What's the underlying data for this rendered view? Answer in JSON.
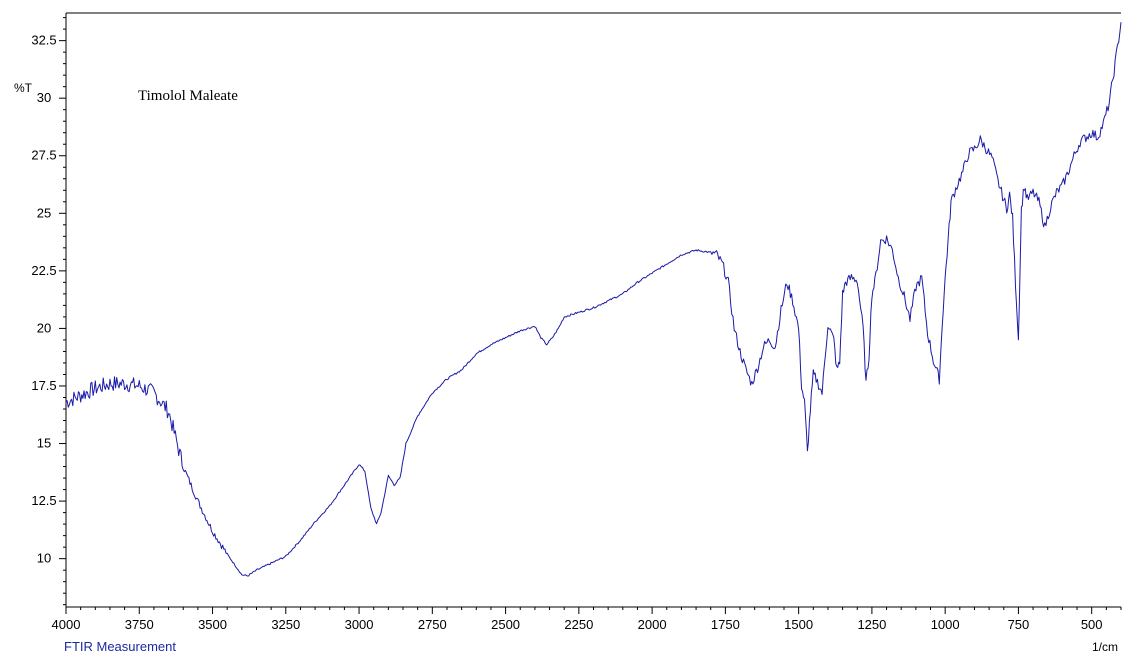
{
  "footer": "FTIR Measurement",
  "chart_data": {
    "type": "line",
    "title": "",
    "annotation": "Timolol Maleate",
    "xlabel": "1/cm",
    "ylabel": "%T",
    "xlim": [
      4000,
      400
    ],
    "ylim": [
      7.9,
      33.7
    ],
    "x_ticks": [
      "4000",
      "3750",
      "3500",
      "3250",
      "3000",
      "2750",
      "2500",
      "2250",
      "2000",
      "1750",
      "1500",
      "1250",
      "1000",
      "750",
      "500"
    ],
    "y_ticks": [
      "10",
      "12.5",
      "15",
      "17.5",
      "20",
      "22.5",
      "25",
      "27.5",
      "30",
      "32.5"
    ],
    "grid": false,
    "colors": {
      "line": "#1a1aa8",
      "axis": "#000000",
      "footer": "#1a2aa0"
    },
    "series": [
      {
        "x": [
          4000,
          3950,
          3900,
          3850,
          3800,
          3750,
          3700,
          3650,
          3600,
          3550,
          3500,
          3450,
          3400,
          3380,
          3350,
          3300,
          3250,
          3200,
          3150,
          3100,
          3050,
          3000,
          2980,
          2960,
          2940,
          2925,
          2900,
          2880,
          2860,
          2840,
          2800,
          2750,
          2700,
          2650,
          2600,
          2550,
          2500,
          2450,
          2400,
          2380,
          2360,
          2340,
          2320,
          2300,
          2250,
          2200,
          2150,
          2100,
          2050,
          2000,
          1950,
          1900,
          1850,
          1800,
          1780,
          1760,
          1740,
          1720,
          1700,
          1680,
          1660,
          1640,
          1620,
          1600,
          1580,
          1560,
          1540,
          1520,
          1500,
          1490,
          1480,
          1470,
          1460,
          1450,
          1440,
          1420,
          1400,
          1380,
          1370,
          1360,
          1350,
          1340,
          1320,
          1300,
          1280,
          1270,
          1260,
          1250,
          1240,
          1220,
          1200,
          1180,
          1160,
          1140,
          1120,
          1100,
          1080,
          1060,
          1040,
          1020,
          1010,
          1000,
          990,
          980,
          960,
          940,
          920,
          900,
          880,
          860,
          840,
          820,
          800,
          790,
          780,
          770,
          760,
          750,
          740,
          730,
          720,
          700,
          680,
          660,
          640,
          620,
          600,
          580,
          560,
          540,
          520,
          500,
          480,
          460,
          440,
          420,
          400
        ],
        "y": [
          16.8,
          17.1,
          17.4,
          17.6,
          17.6,
          17.5,
          17.2,
          16.4,
          14.0,
          12.5,
          11.2,
          10.2,
          9.3,
          9.25,
          9.5,
          9.8,
          10.1,
          10.8,
          11.6,
          12.3,
          13.2,
          14.1,
          13.8,
          12.2,
          11.5,
          12.0,
          13.6,
          13.2,
          13.5,
          15.0,
          16.2,
          17.2,
          17.8,
          18.2,
          18.9,
          19.3,
          19.6,
          19.9,
          20.1,
          19.6,
          19.3,
          19.6,
          20.0,
          20.5,
          20.7,
          20.9,
          21.2,
          21.5,
          22.0,
          22.4,
          22.8,
          23.2,
          23.4,
          23.3,
          23.2,
          22.8,
          22.0,
          20.0,
          19.0,
          18.2,
          17.6,
          18.3,
          19.2,
          19.5,
          19.2,
          20.8,
          22.0,
          21.2,
          20.0,
          17.5,
          16.8,
          14.6,
          16.5,
          18.0,
          17.8,
          17.2,
          20.2,
          19.5,
          18.2,
          18.5,
          21.5,
          22.0,
          22.2,
          22.1,
          20.0,
          17.6,
          18.8,
          21.5,
          22.0,
          23.8,
          23.9,
          23.4,
          22.2,
          21.4,
          20.4,
          21.8,
          22.2,
          19.8,
          18.6,
          17.8,
          20.2,
          22.2,
          23.8,
          25.5,
          26.2,
          26.8,
          27.6,
          27.8,
          28.2,
          27.8,
          27.4,
          26.4,
          25.6,
          25.2,
          25.8,
          24.8,
          22.0,
          19.5,
          25.2,
          26.2,
          25.6,
          25.9,
          25.5,
          24.4,
          25.3,
          25.9,
          26.2,
          26.8,
          27.5,
          28.1,
          28.3,
          28.5,
          28.3,
          28.9,
          29.8,
          31.5,
          33.3
        ]
      }
    ]
  }
}
